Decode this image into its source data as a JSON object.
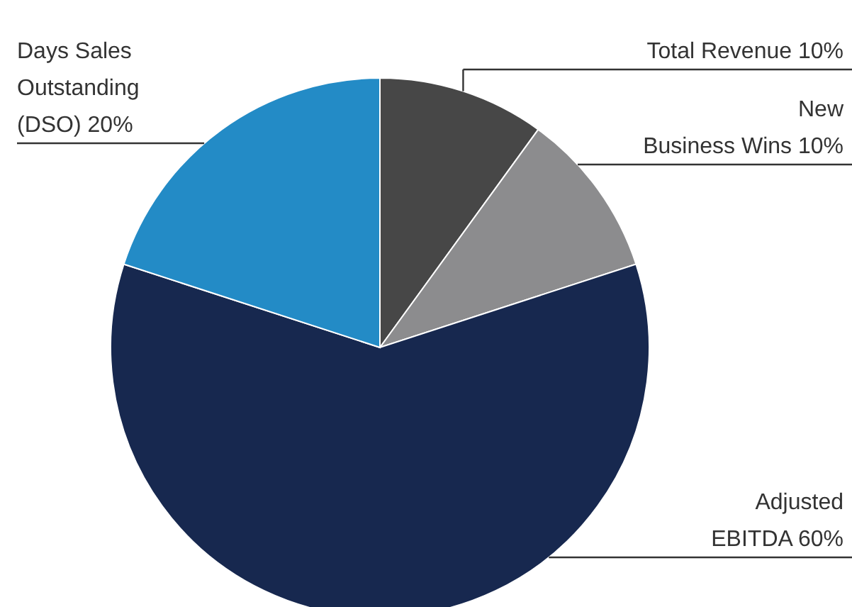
{
  "chart_data": {
    "type": "pie",
    "categories": [
      "Total Revenue",
      "New Business Wins",
      "Adjusted EBITDA",
      "Days Sales Outstanding (DSO)"
    ],
    "values": [
      10,
      10,
      60,
      20
    ],
    "value_labels": [
      "10%",
      "10%",
      "60%",
      "20%"
    ],
    "colors": [
      "#474747",
      "#8c8c8e",
      "#17284f",
      "#238bc6"
    ]
  }
}
